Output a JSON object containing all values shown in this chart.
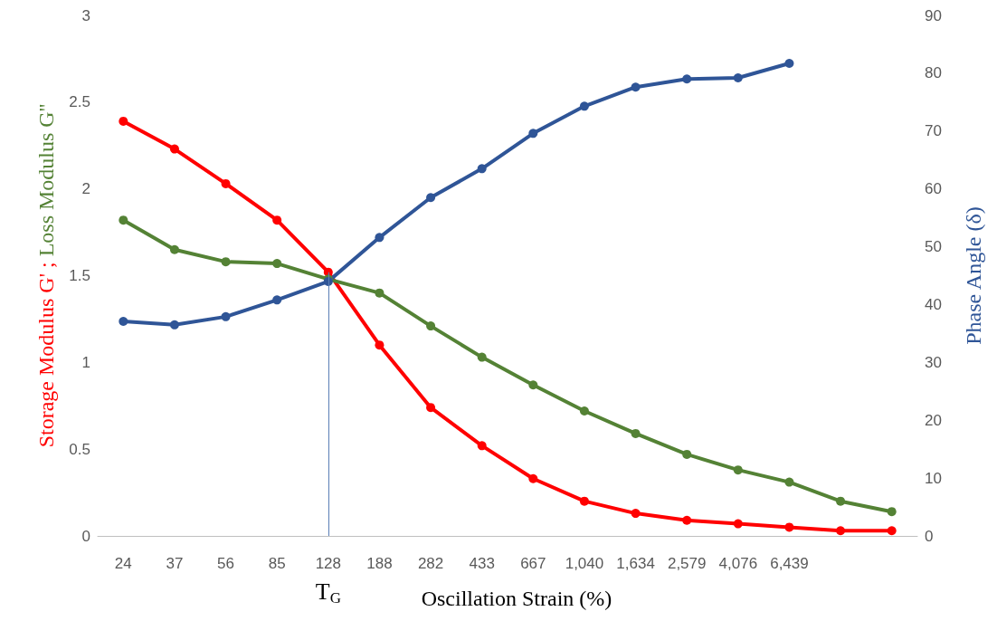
{
  "chart_data": {
    "type": "line",
    "xlabel": "Oscillation Strain (%)",
    "ylabel": "Storage Modulus G' ; Loss Modulus G''",
    "y2label": "Phase Angle (δ)",
    "categories": [
      "24",
      "37",
      "56",
      "85",
      "128",
      "188",
      "282",
      "433",
      "667",
      "1,040",
      "1,634",
      "2,579",
      "4,076",
      "6,439",
      null,
      null
    ],
    "series": [
      {
        "color": "#ff0000",
        "values": [
          2.39,
          2.23,
          2.03,
          1.82,
          1.52,
          1.1,
          0.74,
          0.52,
          0.33,
          0.2,
          0.13,
          0.09,
          0.07,
          0.05,
          0.03,
          0.03
        ]
      },
      {
        "color": "#548235",
        "values": [
          1.82,
          1.65,
          1.58,
          1.57,
          1.48,
          1.4,
          1.21,
          1.03,
          0.87,
          0.72,
          0.59,
          0.47,
          0.38,
          0.31,
          0.2,
          0.14
        ]
      },
      {
        "color": "#2f5597",
        "axis": "y2",
        "values": [
          37.1,
          36.5,
          37.9,
          40.8,
          44.0,
          51.6,
          58.5,
          63.5,
          69.6,
          74.3,
          77.6,
          79.0,
          79.2,
          81.7,
          null,
          null
        ]
      }
    ],
    "ylim": [
      0,
      3
    ],
    "yticks": [
      0,
      0.5,
      1,
      1.5,
      2,
      2.5,
      3
    ],
    "y2lim": [
      0,
      90
    ],
    "y2ticks": [
      0,
      10,
      20,
      30,
      40,
      50,
      60,
      70,
      80,
      90
    ],
    "ref_lines": [
      {
        "axis": "x",
        "value": "128",
        "color": "#5b7fb5"
      }
    ],
    "annotations": [
      "T$_{G}$"
    ],
    "grid": false,
    "marker": "circle",
    "line_style": "solid"
  }
}
